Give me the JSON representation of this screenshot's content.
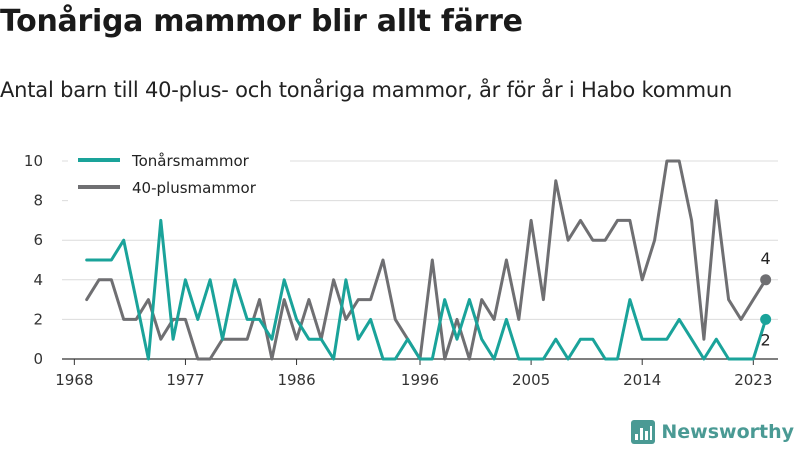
{
  "title": "Tonåriga mammor blir allt färre",
  "subtitle": "Antal barn till 40-plus- och tonåriga mammor, år för år i Habo kommun",
  "brand": {
    "name": "Newsworthy",
    "icon": "bar-chart-icon",
    "color": "#4a9a94"
  },
  "chart_data": {
    "type": "line",
    "x": [
      1969,
      1970,
      1971,
      1972,
      1973,
      1974,
      1975,
      1976,
      1977,
      1978,
      1979,
      1980,
      1981,
      1982,
      1983,
      1984,
      1985,
      1986,
      1987,
      1988,
      1989,
      1990,
      1991,
      1992,
      1993,
      1994,
      1995,
      1996,
      1997,
      1998,
      1999,
      2000,
      2001,
      2002,
      2003,
      2004,
      2005,
      2006,
      2007,
      2008,
      2009,
      2010,
      2011,
      2012,
      2013,
      2014,
      2015,
      2016,
      2017,
      2018,
      2019,
      2020,
      2021,
      2022,
      2023,
      2024
    ],
    "series": [
      {
        "name": "Tonårsmammor",
        "color": "#1aa39a",
        "values": [
          5,
          5,
          5,
          6,
          3,
          0,
          7,
          1,
          4,
          2,
          4,
          1,
          4,
          2,
          2,
          1,
          4,
          2,
          1,
          1,
          0,
          4,
          1,
          2,
          0,
          0,
          1,
          0,
          0,
          3,
          1,
          3,
          1,
          0,
          2,
          0,
          0,
          0,
          1,
          0,
          1,
          1,
          0,
          0,
          3,
          1,
          1,
          1,
          2,
          1,
          0,
          1,
          0,
          0,
          0,
          2
        ]
      },
      {
        "name": "40-plusmammor",
        "color": "#6f6f72",
        "values": [
          3,
          4,
          4,
          2,
          2,
          3,
          1,
          2,
          2,
          0,
          0,
          1,
          1,
          1,
          3,
          0,
          3,
          1,
          3,
          1,
          4,
          2,
          3,
          3,
          5,
          2,
          1,
          0,
          5,
          0,
          2,
          0,
          3,
          2,
          5,
          2,
          7,
          3,
          9,
          6,
          7,
          6,
          6,
          7,
          7,
          4,
          6,
          10,
          10,
          7,
          1,
          8,
          3,
          2,
          3,
          4
        ]
      }
    ],
    "end_labels": [
      "2",
      "4"
    ],
    "ylim": [
      0,
      10
    ],
    "yticks": [
      0,
      2,
      4,
      6,
      8,
      10
    ],
    "xlim": [
      1967,
      2025
    ],
    "xticks": [
      1968,
      1977,
      1986,
      1996,
      2005,
      2014,
      2023
    ],
    "xtick_labels": [
      "1968",
      "1977",
      "1986",
      "1996",
      "2005",
      "2014",
      "2023"
    ],
    "grid": "horizontal",
    "legend_position": "top-left"
  }
}
